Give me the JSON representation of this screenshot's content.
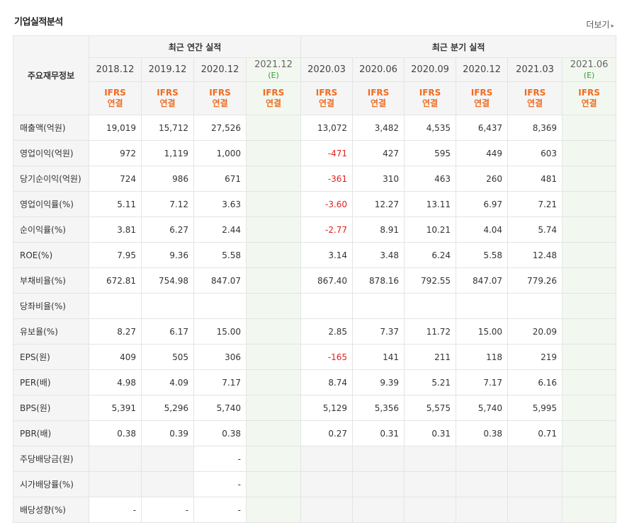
{
  "header": {
    "title": "기업실적분석",
    "more_label": "더보기"
  },
  "table": {
    "corner_label": "주요재무정보",
    "annual_group": "최근 연간 실적",
    "quarter_group": "최근 분기 실적",
    "periods": [
      "2018.12",
      "2019.12",
      "2020.12",
      "2021.12",
      "2020.03",
      "2020.06",
      "2020.09",
      "2020.12",
      "2021.03",
      "2021.06"
    ],
    "estimate_marker": "(E)",
    "ifrs_line1": "IFRS",
    "ifrs_line2": "연결",
    "rows": [
      {
        "label": "매출액(억원)",
        "values": [
          "19,019",
          "15,712",
          "27,526",
          "",
          "13,072",
          "3,482",
          "4,535",
          "6,437",
          "8,369",
          ""
        ]
      },
      {
        "label": "영업이익(억원)",
        "values": [
          "972",
          "1,119",
          "1,000",
          "",
          "-471",
          "427",
          "595",
          "449",
          "603",
          ""
        ]
      },
      {
        "label": "당기순이익(억원)",
        "values": [
          "724",
          "986",
          "671",
          "",
          "-361",
          "310",
          "463",
          "260",
          "481",
          ""
        ]
      },
      {
        "label": "영업이익률(%)",
        "values": [
          "5.11",
          "7.12",
          "3.63",
          "",
          "-3.60",
          "12.27",
          "13.11",
          "6.97",
          "7.21",
          ""
        ]
      },
      {
        "label": "순이익률(%)",
        "values": [
          "3.81",
          "6.27",
          "2.44",
          "",
          "-2.77",
          "8.91",
          "10.21",
          "4.04",
          "5.74",
          ""
        ]
      },
      {
        "label": "ROE(%)",
        "values": [
          "7.95",
          "9.36",
          "5.58",
          "",
          "3.14",
          "3.48",
          "6.24",
          "5.58",
          "12.48",
          ""
        ]
      },
      {
        "label": "부채비율(%)",
        "values": [
          "672.81",
          "754.98",
          "847.07",
          "",
          "867.40",
          "878.16",
          "792.55",
          "847.07",
          "779.26",
          ""
        ]
      },
      {
        "label": "당좌비율(%)",
        "values": [
          "",
          "",
          "",
          "",
          "",
          "",
          "",
          "",
          "",
          ""
        ]
      },
      {
        "label": "유보율(%)",
        "values": [
          "8.27",
          "6.17",
          "15.00",
          "",
          "2.85",
          "7.37",
          "11.72",
          "15.00",
          "20.09",
          ""
        ]
      },
      {
        "label": "EPS(원)",
        "values": [
          "409",
          "505",
          "306",
          "",
          "-165",
          "141",
          "211",
          "118",
          "219",
          ""
        ]
      },
      {
        "label": "PER(배)",
        "values": [
          "4.98",
          "4.09",
          "7.17",
          "",
          "8.74",
          "9.39",
          "5.21",
          "7.17",
          "6.16",
          ""
        ]
      },
      {
        "label": "BPS(원)",
        "values": [
          "5,391",
          "5,296",
          "5,740",
          "",
          "5,129",
          "5,356",
          "5,575",
          "5,740",
          "5,995",
          ""
        ]
      },
      {
        "label": "PBR(배)",
        "values": [
          "0.38",
          "0.39",
          "0.38",
          "",
          "0.27",
          "0.31",
          "0.31",
          "0.38",
          "0.71",
          ""
        ]
      },
      {
        "label": "주당배당금(원)",
        "values": [
          "",
          "",
          "-",
          "",
          "",
          "",
          "",
          "",
          "",
          ""
        ]
      },
      {
        "label": "시가배당률(%)",
        "values": [
          "",
          "",
          "-",
          "",
          "",
          "",
          "",
          "",
          "",
          ""
        ]
      },
      {
        "label": "배당성향(%)",
        "values": [
          "-",
          "-",
          "-",
          "",
          "",
          "",
          "",
          "",
          "",
          ""
        ]
      }
    ]
  },
  "colors": {
    "negative": "#e02020",
    "ifrs": "#ef6c22",
    "estimate": "#3c9a3c",
    "estimate_bg": "#f2f8ef"
  }
}
